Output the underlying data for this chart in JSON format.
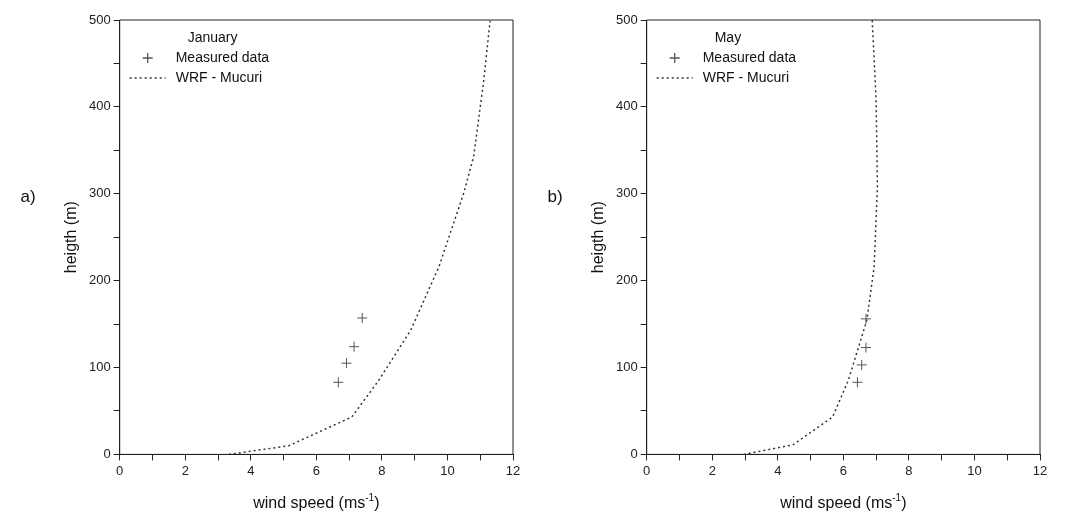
{
  "chart_data": [
    {
      "type": "scatter",
      "legend_title": "January",
      "legend": "top left",
      "xlabel": "wind speed (ms$^{-1}$)",
      "ylabel": "heigth (m)",
      "annotations": [
        "a)"
      ],
      "xlim": [
        0,
        12
      ],
      "xticks": [
        0,
        {
          "value": 1,
          "label": null
        },
        2,
        {
          "value": 3,
          "label": null
        },
        4,
        {
          "value": 5,
          "label": null
        },
        6,
        {
          "value": 7,
          "label": null
        },
        8,
        {
          "value": 9,
          "label": null
        },
        10,
        {
          "value": 11,
          "label": null
        },
        12
      ],
      "ylim": [
        0,
        500
      ],
      "yticks": [
        0,
        {
          "value": 50,
          "label": null
        },
        100,
        {
          "value": 150,
          "label": null
        },
        200,
        {
          "value": 250,
          "label": null
        },
        300,
        {
          "value": 350,
          "label": null
        },
        400,
        {
          "value": 450,
          "label": null
        },
        500
      ],
      "series": [
        {
          "name": "Measured data",
          "marker": "cross",
          "color": "#555555",
          "x": [
            6.67,
            6.92,
            7.15,
            7.4
          ],
          "values": [
            83,
            105,
            124,
            157
          ]
        },
        {
          "name": "WRF - Mucuri",
          "type": "line",
          "marker": "none",
          "line_style": "dotted",
          "color": "#333333",
          "x": [
            3.33,
            5.16,
            7.08,
            7.9,
            8.88,
            9.74,
            10.5,
            10.8,
            11.1,
            11.3
          ],
          "values": [
            0,
            10,
            43,
            85,
            143,
            216,
            301,
            343,
            428,
            499
          ]
        }
      ]
    },
    {
      "type": "scatter",
      "legend_title": "May",
      "legend": "top left",
      "xlabel": "wind speed (ms$^{-1}$)",
      "ylabel": "heigth (m)",
      "annotations": [
        "b)"
      ],
      "xlim": [
        0,
        12
      ],
      "xticks": [
        0,
        {
          "value": 1,
          "label": null
        },
        2,
        {
          "value": 3,
          "label": null
        },
        4,
        {
          "value": 5,
          "label": null
        },
        6,
        {
          "value": 7,
          "label": null
        },
        8,
        {
          "value": 9,
          "label": null
        },
        10,
        {
          "value": 11,
          "label": null
        },
        12
      ],
      "ylim": [
        0,
        500
      ],
      "yticks": [
        0,
        {
          "value": 50,
          "label": null
        },
        100,
        {
          "value": 150,
          "label": null
        },
        200,
        {
          "value": 250,
          "label": null
        },
        300,
        {
          "value": 350,
          "label": null
        },
        400,
        {
          "value": 450,
          "label": null
        },
        500
      ],
      "series": [
        {
          "name": "Measured data",
          "marker": "cross",
          "color": "#555555",
          "x": [
            6.43,
            6.56,
            6.69,
            6.69
          ],
          "values": [
            83,
            103,
            123,
            156
          ]
        },
        {
          "name": "WRF - Mucuri",
          "type": "line",
          "marker": "none",
          "line_style": "dotted",
          "color": "#333333",
          "x": [
            2.96,
            4.46,
            5.67,
            6.15,
            6.72,
            6.94,
            7.04,
            7.0,
            6.88
          ],
          "values": [
            0,
            11,
            43,
            85,
            155,
            216,
            308,
            408,
            500
          ]
        }
      ]
    }
  ]
}
